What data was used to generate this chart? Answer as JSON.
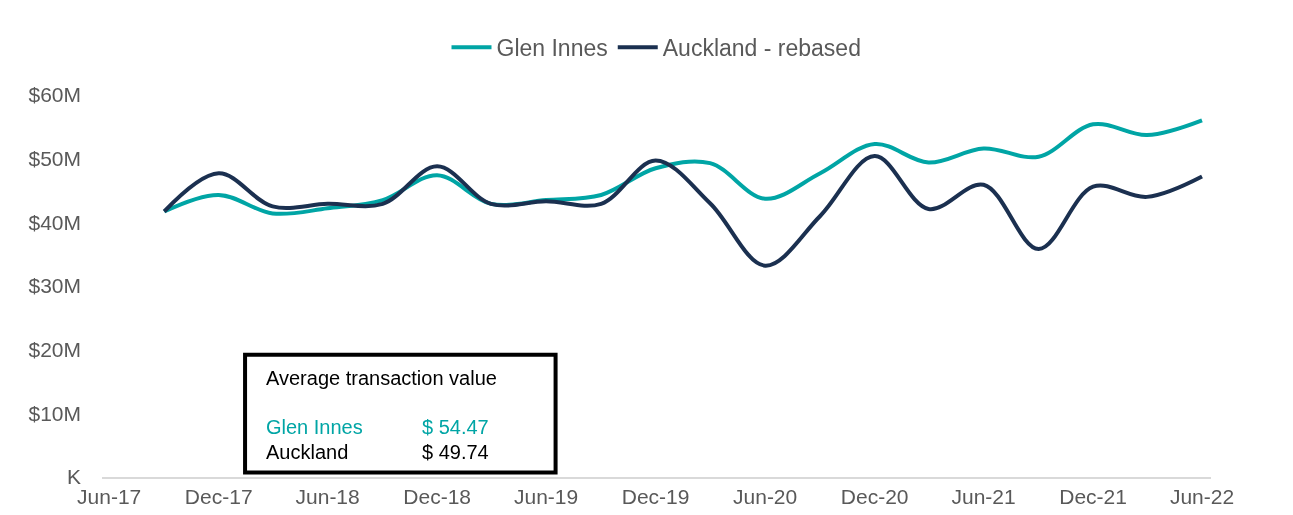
{
  "chart_data": {
    "type": "line",
    "x": [
      "2017-09",
      "2017-12",
      "2018-03",
      "2018-06",
      "2018-09",
      "2018-12",
      "2019-03",
      "2019-06",
      "2019-09",
      "2019-12",
      "2020-03",
      "2020-06",
      "2020-09",
      "2020-12",
      "2021-03",
      "2021-06",
      "2021-09",
      "2021-12",
      "2022-03",
      "2022-06"
    ],
    "series": [
      {
        "name": "Glen Innes",
        "color": "#00a5a5",
        "values": [
          41.7,
          44.3,
          41.4,
          42.2,
          43.5,
          47.4,
          42.9,
          43.5,
          44.3,
          48.5,
          49.3,
          43.7,
          47.7,
          52.3,
          49.4,
          51.6,
          50.3,
          55.4,
          53.7,
          56.0
        ]
      },
      {
        "name": "Auckland - rebased",
        "color": "#1b3050",
        "values": [
          41.7,
          47.7,
          42.5,
          42.9,
          42.9,
          48.8,
          42.9,
          43.3,
          42.9,
          49.7,
          43.0,
          33.2,
          41.0,
          50.4,
          42.1,
          45.9,
          35.8,
          45.6,
          44.0,
          47.2
        ]
      }
    ],
    "xlim": [
      "2017-05-20",
      "2022-06-16"
    ],
    "xticks": [
      {
        "value": "2017-06",
        "label": "Jun-17"
      },
      {
        "value": "2017-12",
        "label": "Dec-17"
      },
      {
        "value": "2018-06",
        "label": "Jun-18"
      },
      {
        "value": "2018-12",
        "label": "Dec-18"
      },
      {
        "value": "2019-06",
        "label": "Jun-19"
      },
      {
        "value": "2019-12",
        "label": "Dec-19"
      },
      {
        "value": "2020-06",
        "label": "Jun-20"
      },
      {
        "value": "2020-12",
        "label": "Dec-20"
      },
      {
        "value": "2021-06",
        "label": "Jun-21"
      },
      {
        "value": "2021-12",
        "label": "Dec-21"
      },
      {
        "value": "2022-06",
        "label": "Jun-22"
      }
    ],
    "ylim": [
      0,
      60
    ],
    "yticks": [
      {
        "value": 0,
        "label": "K"
      },
      {
        "value": 10,
        "label": "$10M"
      },
      {
        "value": 20,
        "label": "$20M"
      },
      {
        "value": 30,
        "label": "$30M"
      },
      {
        "value": 40,
        "label": "$40M"
      },
      {
        "value": 50,
        "label": "$50M"
      },
      {
        "value": 60,
        "label": "$60M"
      }
    ],
    "legend": "top",
    "annotations": [
      "Average transaction value",
      "Glen Innes",
      "$ 54.47",
      "Auckland",
      "$ 49.74"
    ]
  }
}
